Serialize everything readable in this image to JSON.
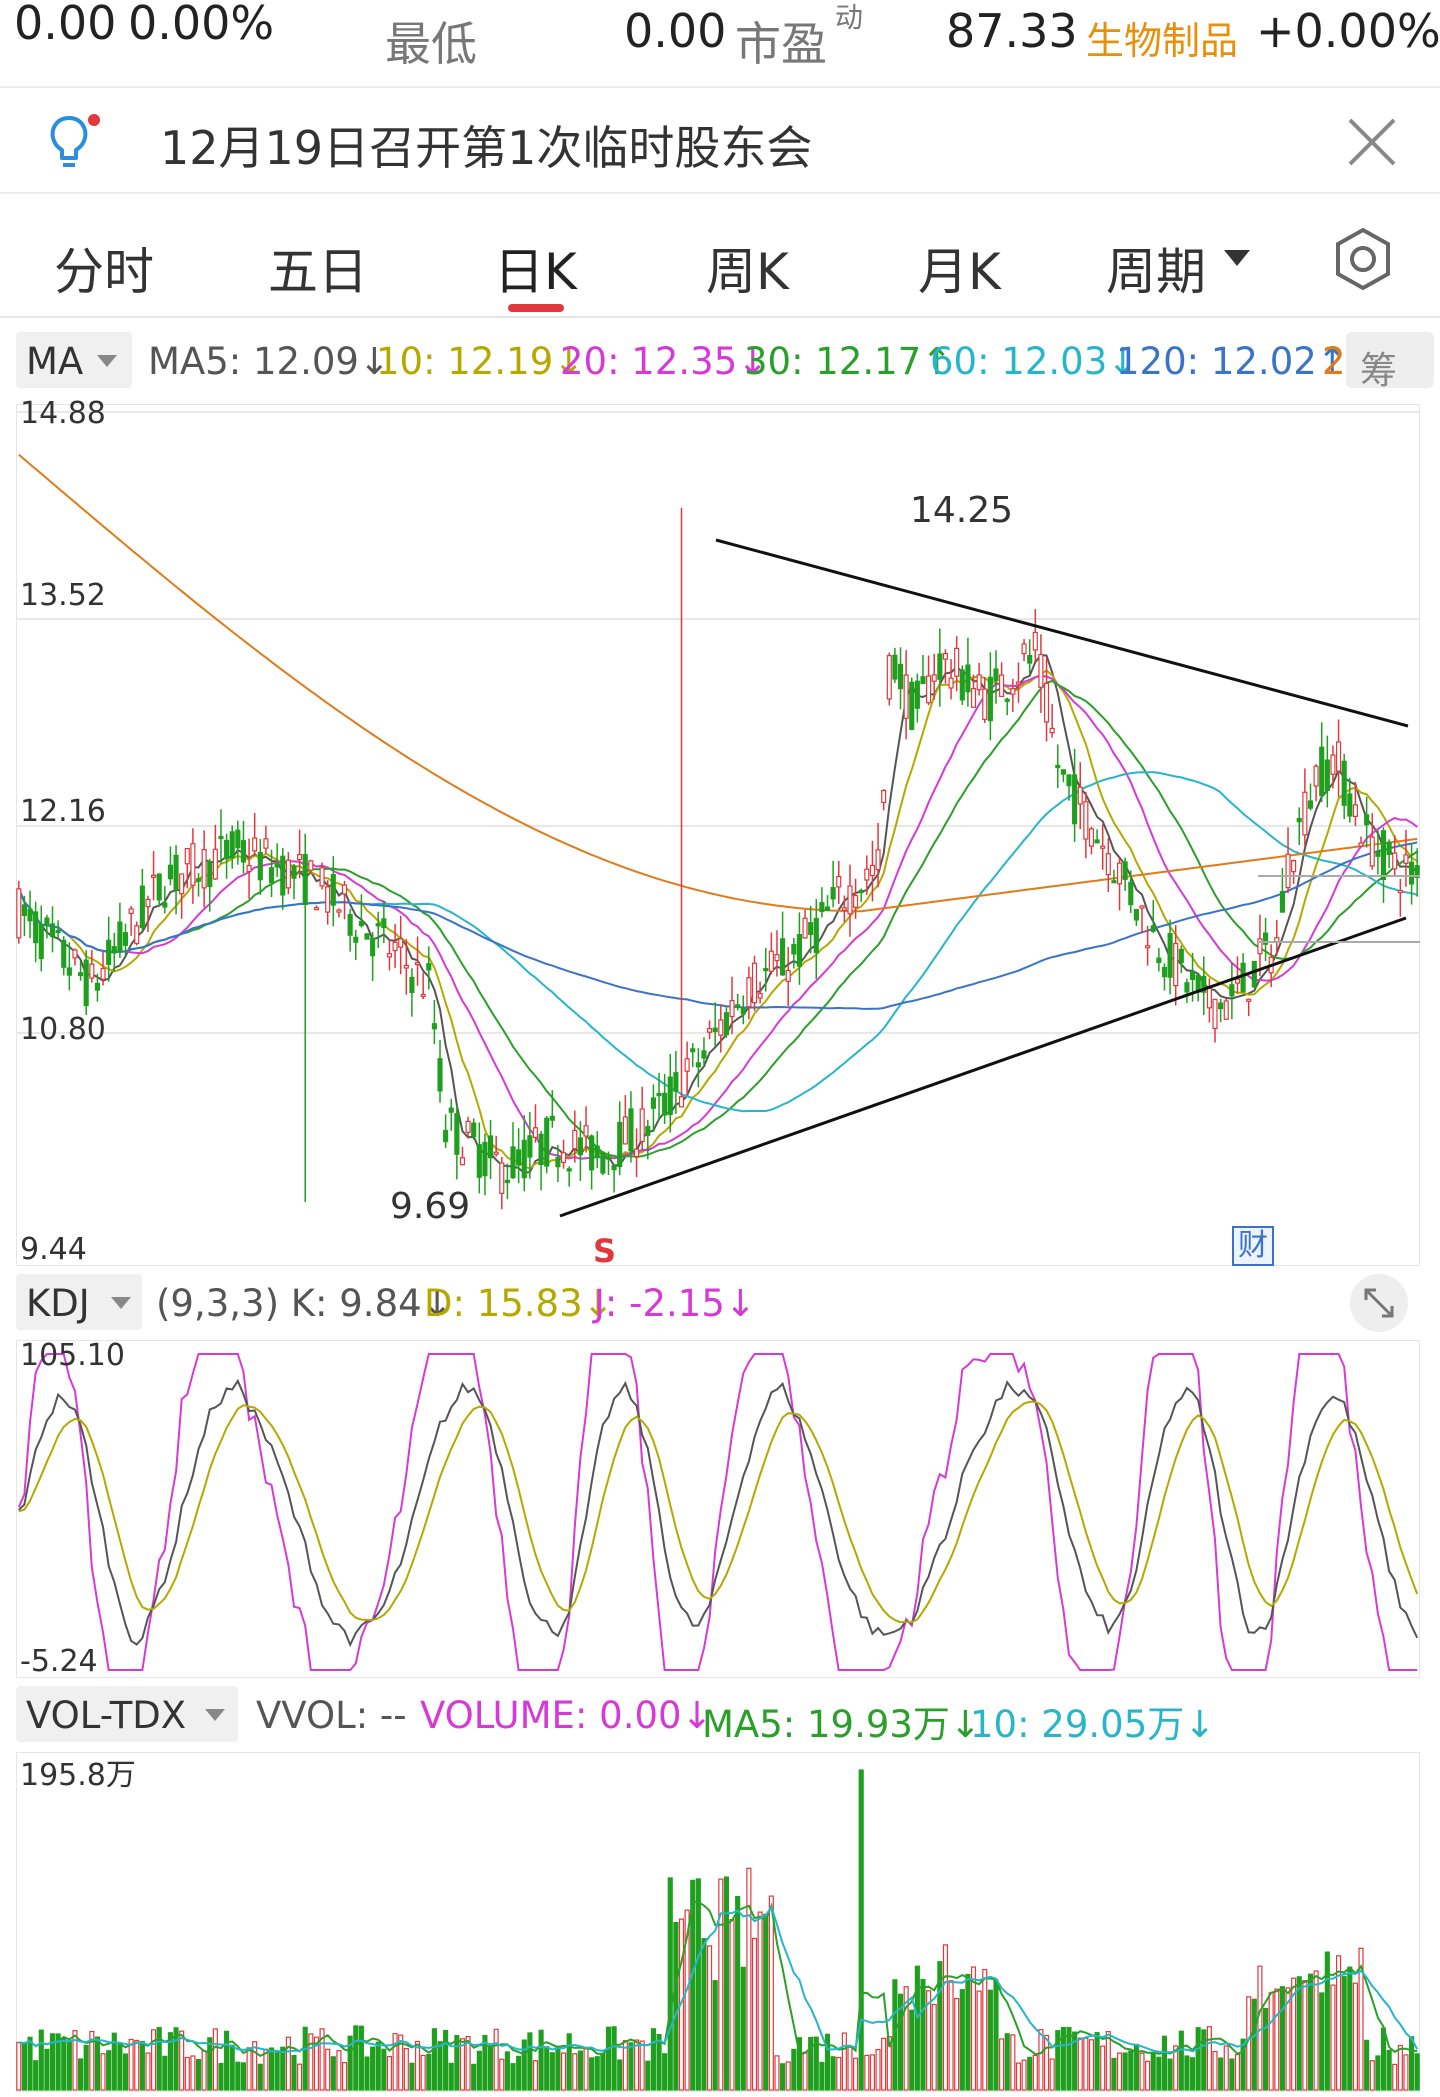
{
  "quote_bar": {
    "change": "0.00",
    "change_pct": "0.00%",
    "low_label": "最低",
    "low_value": "0.00",
    "pe_label": "市盈",
    "pe_sup": "动",
    "pe_value": "87.33",
    "sector": "生物制品",
    "sector_change": "+0.00%"
  },
  "notice": {
    "text": "12月19日召开第1次临时股东会"
  },
  "tabs": [
    {
      "label": "分时"
    },
    {
      "label": "五日"
    },
    {
      "label": "日K",
      "active": true
    },
    {
      "label": "周K"
    },
    {
      "label": "月K"
    },
    {
      "label": "周期"
    }
  ],
  "ma_indicator": {
    "name": "MA",
    "ma5": "MA5: 12.09↓",
    "ma10": "10: 12.19↓",
    "ma20": "20: 12.35↓",
    "ma30": "30: 12.17↑",
    "ma60": "60: 12.03↓",
    "ma120": "120: 12.02↑",
    "ma250": "2",
    "chips_label": "筹"
  },
  "kdj_indicator": {
    "name": "KDJ",
    "params": "(9,3,3) K: 9.84↓",
    "d": "D: 15.83↓",
    "j": "J: -2.15↓"
  },
  "vol_indicator": {
    "name": "VOL-TDX",
    "vvol": "VVOL: --",
    "volume": "VOLUME: 0.00↓",
    "ma5": "MA5: 19.93万↓",
    "ma10": "10: 29.05万↓"
  },
  "markers": {
    "signal": "S",
    "finance": "财"
  },
  "colors": {
    "up": "#e0383d",
    "down": "#1ea01e",
    "ma5": "#555555",
    "ma10": "#b5a800",
    "ma20": "#d63ad6",
    "ma30": "#2aa02a",
    "ma60": "#27b5c9",
    "ma120": "#3b73c9",
    "ma250": "#e07b1a",
    "sector": "#e8900e"
  },
  "chart_data": [
    {
      "type": "candlestick",
      "title": "日K",
      "ylim": [
        9.44,
        14.88
      ],
      "y_ticks": [
        "14.88",
        "13.52",
        "12.16",
        "10.80",
        "9.44"
      ],
      "annotations": [
        "14.25",
        "9.69"
      ],
      "low": 9.69,
      "high": 14.25,
      "trendlines": [
        "descending resistance from mid-chart high to right edge",
        "ascending support from 'S' marker to right edge"
      ],
      "grid": true
    },
    {
      "type": "line",
      "title": "KDJ",
      "ylim": [
        -5.24,
        105.1
      ],
      "y_ticks": [
        "105.10",
        "-5.24"
      ],
      "series": [
        {
          "name": "K",
          "last": 9.84
        },
        {
          "name": "D",
          "last": 15.83
        },
        {
          "name": "J",
          "last": -2.15
        }
      ]
    },
    {
      "type": "bar",
      "title": "VOL-TDX",
      "y_ticks": [
        "195.8万"
      ],
      "series": [
        {
          "name": "MA5",
          "last": "19.93万"
        },
        {
          "name": "10",
          "last": "29.05万"
        }
      ]
    }
  ]
}
